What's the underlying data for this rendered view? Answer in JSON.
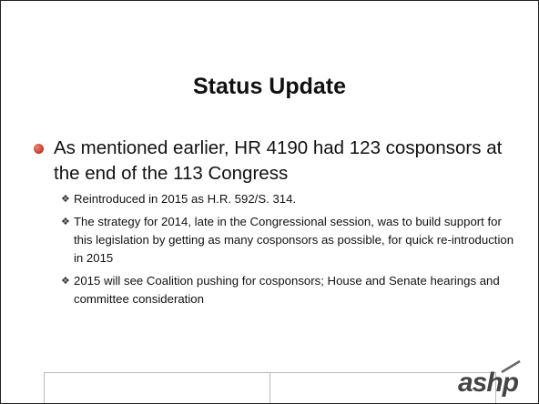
{
  "title": "Status Update",
  "bullets": [
    {
      "text": "As mentioned earlier, HR 4190 had 123 cosponsors at the end of the 113 Congress",
      "sub": [
        "Reintroduced in 2015 as H.R. 592/S. 314.",
        "The strategy for 2014, late in the Congressional session, was to build support for this legislation by getting as many cosponsors as possible, for quick re-introduction in 2015",
        "2015 will see Coalition pushing for cosponsors; House and Senate hearings and committee consideration"
      ]
    }
  ],
  "logo": "ashp"
}
